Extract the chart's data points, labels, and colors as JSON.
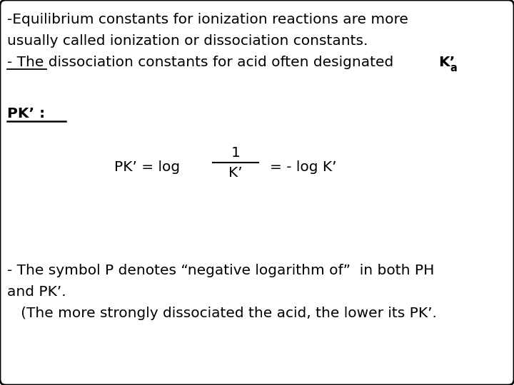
{
  "bg_color": "#ffffff",
  "border_color": "#000000",
  "text_color": "#000000",
  "font_size_main": 14.5,
  "line1": "-Equilibrium constants for ionization reactions are more",
  "line2": "usually called ionization or dissociation constants.",
  "line3_plain": "- The dissociation constants for acid often designated ",
  "line3_bold": "K’",
  "line3_sub": "a",
  "pk_label": "PK’ :",
  "formula_left": "PK’ = log",
  "formula_numerator": "1",
  "formula_denominator": "K’",
  "formula_right": "= - log K’",
  "bottom1": "- The symbol P denotes “negative logarithm of”  in both PH",
  "bottom2": "and PK’.",
  "bottom3": "   (The more strongly dissociated the acid, the lower its PK’."
}
